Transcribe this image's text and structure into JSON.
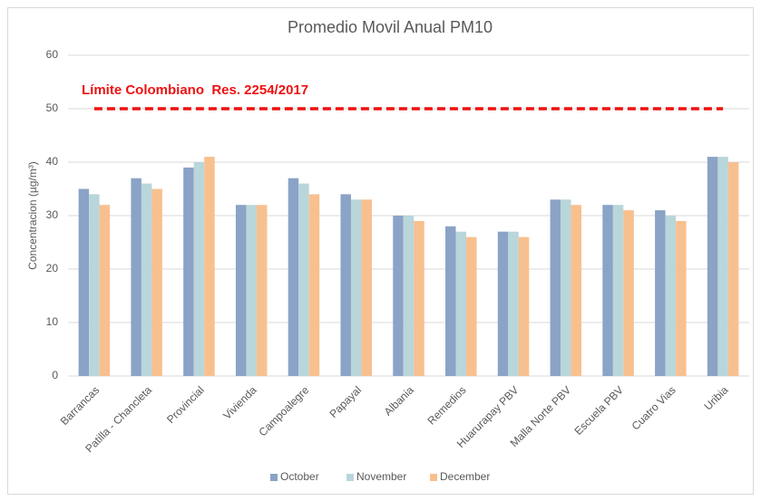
{
  "chart_data": {
    "type": "bar",
    "title": "Promedio Movil Anual PM10",
    "y_label": "Concentracion (µg/m³)",
    "categories": [
      "Barrancas",
      "Patilla - Chancleta",
      "Provincial",
      "Vivienda",
      "Campoalegre",
      "Papayal",
      "Albania",
      "Remedios",
      "Huarurapay PBV",
      "Malla Norte PBV",
      "Escuela PBV",
      "Cuatro Vias",
      "Uribia"
    ],
    "series": [
      {
        "name": "October",
        "color": "#8aa3c6",
        "values": [
          35,
          37,
          39,
          32,
          37,
          34,
          30,
          28,
          27,
          33,
          32,
          31,
          41
        ]
      },
      {
        "name": "November",
        "color": "#b9d6da",
        "values": [
          34,
          36,
          40,
          32,
          36,
          33,
          30,
          27,
          27,
          33,
          32,
          30,
          41
        ]
      },
      {
        "name": "December",
        "color": "#f8c08f",
        "values": [
          32,
          35,
          41,
          32,
          34,
          33,
          29,
          26,
          26,
          32,
          31,
          29,
          40
        ]
      }
    ],
    "limit_line": {
      "value": 50,
      "label": "Límite Colombiano  Res. 2254/2017",
      "color": "#ee1111"
    },
    "ylim": [
      0,
      60
    ],
    "yticks": [
      0,
      10,
      20,
      30,
      40,
      50,
      60
    ],
    "grid": true,
    "legend": "bottom"
  }
}
